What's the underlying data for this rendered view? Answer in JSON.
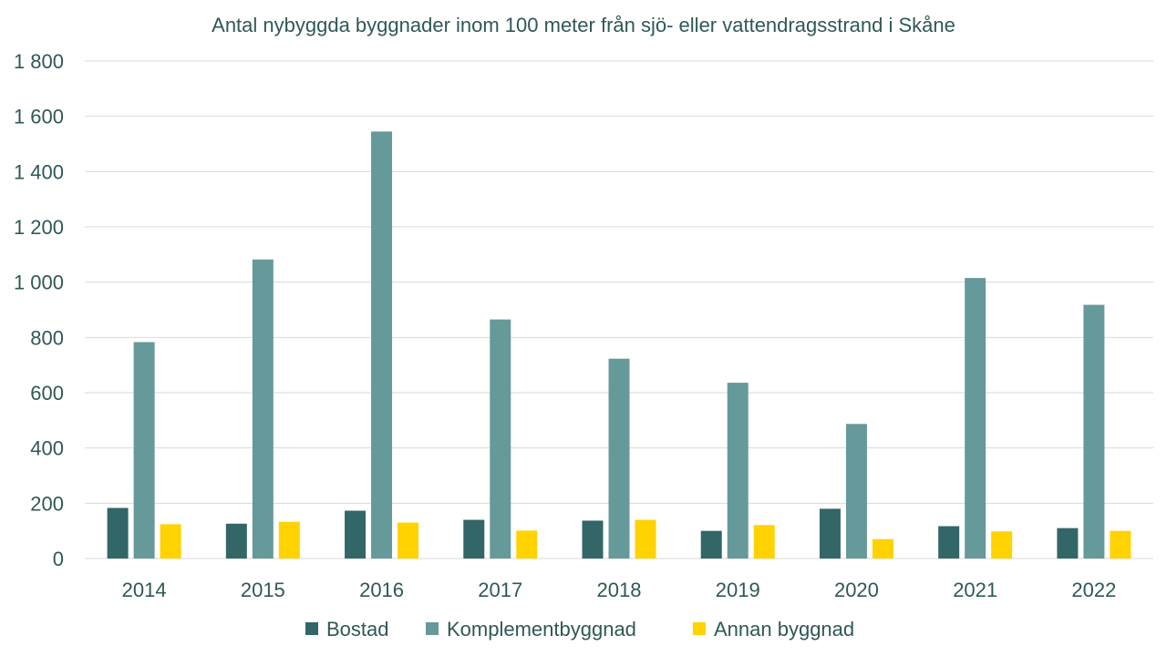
{
  "chart_data": {
    "type": "bar",
    "title": "Antal nybyggda byggnader inom 100 meter från sjö- eller vattendragsstrand i Skåne",
    "xlabel": "",
    "ylabel": "",
    "categories": [
      "2014",
      "2015",
      "2016",
      "2017",
      "2018",
      "2019",
      "2020",
      "2021",
      "2022"
    ],
    "ylim": [
      0,
      1800
    ],
    "yticks": [
      0,
      200,
      400,
      600,
      800,
      1000,
      1200,
      1400,
      1600,
      1800
    ],
    "ytick_labels": [
      "0",
      "200",
      "400",
      "600",
      "800",
      "1 000",
      "1 200",
      "1 400",
      "1 600",
      "1 800"
    ],
    "grid": true,
    "legend_position": "bottom",
    "series": [
      {
        "name": "Bostad",
        "color": "#336666",
        "values": [
          183,
          126,
          173,
          140,
          137,
          100,
          180,
          117,
          110
        ]
      },
      {
        "name": "Komplementbyggnad",
        "color": "#669999",
        "values": [
          783,
          1082,
          1545,
          865,
          723,
          636,
          487,
          1015,
          918
        ]
      },
      {
        "name": "Annan byggnad",
        "color": "#ffd200",
        "values": [
          124,
          133,
          130,
          101,
          140,
          121,
          70,
          98,
          100
        ]
      }
    ]
  }
}
